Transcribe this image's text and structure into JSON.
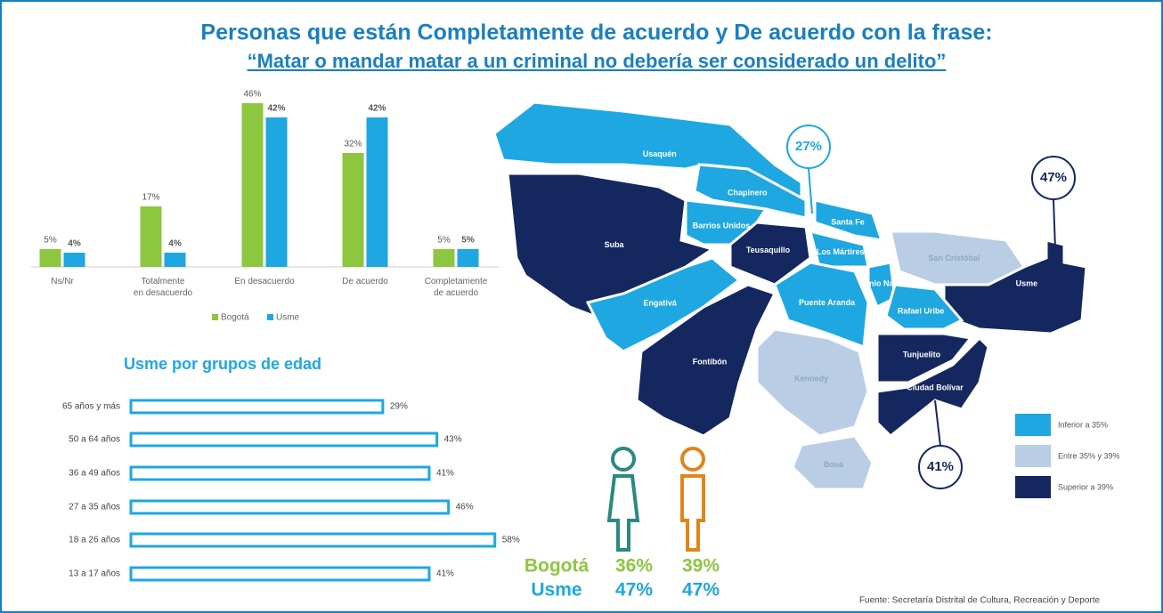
{
  "title": "Personas que están Completamente de acuerdo y De acuerdo con la frase:",
  "subtitle": "“Matar o mandar matar a un criminal no debería ser considerado un delito”",
  "chart_data": [
    {
      "type": "bar",
      "categories": [
        "Ns/Nr",
        "Totalmente en desacuerdo",
        "En desacuerdo",
        "De acuerdo",
        "Completamente de acuerdo"
      ],
      "series": [
        {
          "name": "Bogotá",
          "color": "#8dc63f",
          "values": [
            5,
            17,
            46,
            32,
            5
          ],
          "value_labels": [
            "5%",
            "17%",
            "46%",
            "32%",
            "5%"
          ]
        },
        {
          "name": "Usme",
          "color": "#1ea7e1",
          "values": [
            4,
            4,
            42,
            42,
            5
          ],
          "value_labels": [
            "4%",
            "4%",
            "42%",
            "42%",
            "5%"
          ]
        }
      ],
      "legend": "bottom"
    },
    {
      "type": "hbar",
      "title": "Usme por grupos de edad",
      "categories": [
        "65 años y más",
        "50 a 64 años",
        "36 a 49 años",
        "27 a 35 años",
        "18 a 26 años",
        "13 a 17 años"
      ],
      "values": [
        29,
        43,
        41,
        46,
        58,
        41
      ],
      "value_labels": [
        "29%",
        "43%",
        "41%",
        "46%",
        "58%",
        "41%"
      ],
      "color": "#1ea7e1"
    }
  ],
  "map": {
    "regions": [
      {
        "name": "Usaquén",
        "level": 0
      },
      {
        "name": "Chapinero",
        "level": 0
      },
      {
        "name": "Suba",
        "level": 2
      },
      {
        "name": "Barrios Unidos",
        "level": 0
      },
      {
        "name": "Teusaquillo",
        "level": 2
      },
      {
        "name": "Santa Fe",
        "level": 0
      },
      {
        "name": "Los Mártires",
        "level": 0
      },
      {
        "name": "San Cristóbal",
        "level": 1
      },
      {
        "name": "Usme",
        "level": 2
      },
      {
        "name": "Antonio Nariño",
        "level": 0
      },
      {
        "name": "Rafael Uribe",
        "level": 0
      },
      {
        "name": "Puente Aranda",
        "level": 0
      },
      {
        "name": "Engativá",
        "level": 0
      },
      {
        "name": "Fontibón",
        "level": 2
      },
      {
        "name": "Kennedy",
        "level": 1
      },
      {
        "name": "Bosa",
        "level": 1
      },
      {
        "name": "Tunjuelito",
        "level": 2
      },
      {
        "name": "Ciudad Bolívar",
        "level": 2
      }
    ],
    "callouts": [
      "27%",
      "47%",
      "41%"
    ],
    "legend": [
      {
        "label": "Inferior a 35%",
        "color": "#1ea7e1"
      },
      {
        "label": "Entre 35% y 39%",
        "color": "#b9cde5"
      },
      {
        "label": "Superior a 39%",
        "color": "#14275f"
      }
    ]
  },
  "gender": {
    "rows": [
      {
        "name": "Bogotá",
        "female": "36%",
        "male": "39%"
      },
      {
        "name": "Usme",
        "female": "47%",
        "male": "47%"
      }
    ]
  },
  "source": "Fuente: Secretaría Distrital de Cultura, Recreación y Deporte"
}
